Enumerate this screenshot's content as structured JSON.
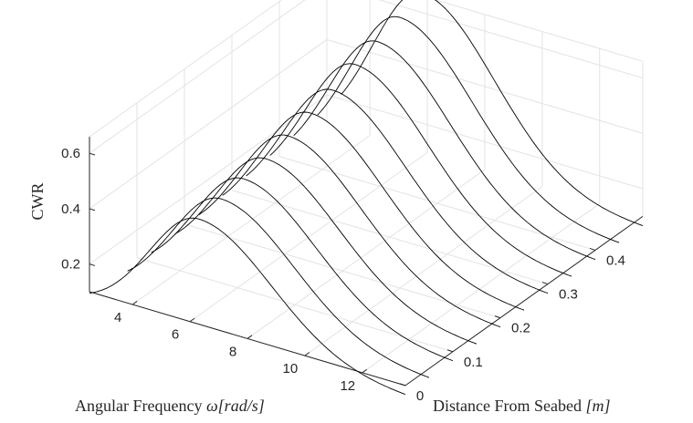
{
  "chart_data": {
    "type": "line",
    "view": "3d-waterfall",
    "xlabel": {
      "text": "Angular Frequency ",
      "math": "ω[rad/s]"
    },
    "ylabel": {
      "text": "Distance From Seabed ",
      "math": "[m]"
    },
    "zlabel": "CWR",
    "x_ticks": [
      4,
      6,
      8,
      10,
      12
    ],
    "y_ticks": [
      0,
      0.1,
      0.2,
      0.3,
      0.4
    ],
    "z_ticks": [
      0.2,
      0.4,
      0.6
    ],
    "xlim": [
      2.5,
      13.5
    ],
    "ylim": [
      0,
      0.5
    ],
    "zlim": [
      0.1,
      0.66
    ],
    "grid": true,
    "line_color": "#000000",
    "series": [
      {
        "y": 0.0,
        "x": [
          2.5,
          13.5
        ],
        "peak_x": 6.3,
        "peak_cwr": 0.48
      },
      {
        "y": 0.05,
        "x": [
          3.0,
          13.5
        ],
        "peak_x": 6.25,
        "peak_cwr": 0.49
      },
      {
        "y": 0.1,
        "x": [
          3.0,
          13.5
        ],
        "peak_x": 6.2,
        "peak_cwr": 0.5
      },
      {
        "y": 0.15,
        "x": [
          3.0,
          13.5
        ],
        "peak_x": 6.15,
        "peak_cwr": 0.51
      },
      {
        "y": 0.2,
        "x": [
          3.0,
          13.5
        ],
        "peak_x": 6.1,
        "peak_cwr": 0.53
      },
      {
        "y": 0.25,
        "x": [
          3.0,
          13.5
        ],
        "peak_x": 6.05,
        "peak_cwr": 0.55
      },
      {
        "y": 0.3,
        "x": [
          3.0,
          13.5
        ],
        "peak_x": 6.0,
        "peak_cwr": 0.57
      },
      {
        "y": 0.35,
        "x": [
          3.0,
          13.5
        ],
        "peak_x": 5.95,
        "peak_cwr": 0.6
      },
      {
        "y": 0.4,
        "x": [
          3.0,
          13.5
        ],
        "peak_x": 5.9,
        "peak_cwr": 0.62
      },
      {
        "y": 0.45,
        "x": [
          3.0,
          13.5
        ],
        "peak_x": 5.85,
        "peak_cwr": 0.645
      },
      {
        "y": 0.5,
        "x": [
          3.0,
          13.5
        ],
        "peak_x": 5.8,
        "peak_cwr": 0.67
      }
    ]
  }
}
